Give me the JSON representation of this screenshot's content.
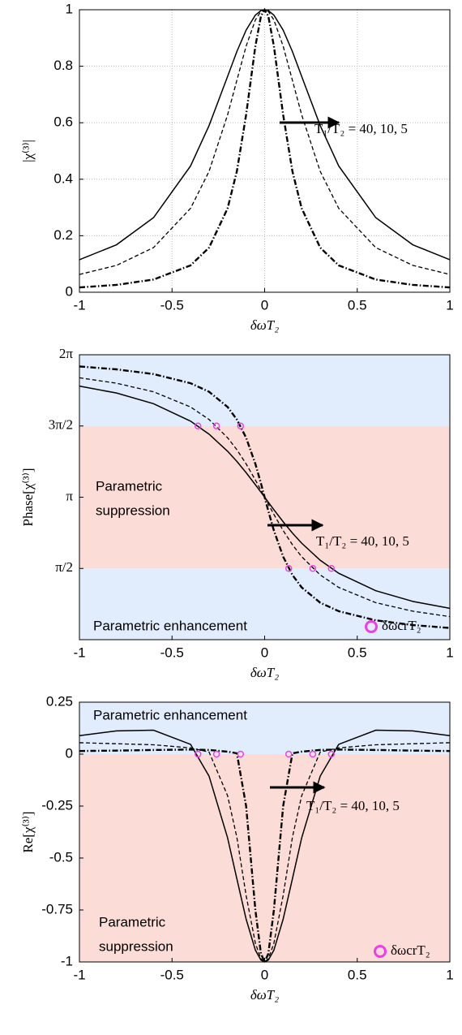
{
  "chart_data": [
    {
      "type": "line",
      "ylabel": "|χ⁽³⁾|",
      "xlabel": "δωT₂",
      "x": [
        -1,
        -0.8,
        -0.6,
        -0.4,
        -0.3,
        -0.2,
        -0.15,
        -0.1,
        -0.05,
        -0.02,
        0,
        0.02,
        0.05,
        0.1,
        0.15,
        0.2,
        0.3,
        0.4,
        0.6,
        0.8,
        1
      ],
      "series": [
        {
          "color": "#000000",
          "dash": "solid",
          "values": [
            0.115,
            0.168,
            0.264,
            0.447,
            0.59,
            0.764,
            0.852,
            0.928,
            0.981,
            0.997,
            1,
            0.997,
            0.981,
            0.928,
            0.852,
            0.764,
            0.59,
            0.447,
            0.264,
            0.168,
            0.115
          ]
        },
        {
          "color": "#000000",
          "dash": "dashed",
          "values": [
            0.063,
            0.095,
            0.158,
            0.297,
            0.428,
            0.628,
            0.75,
            0.871,
            0.964,
            0.994,
            1,
            0.994,
            0.964,
            0.871,
            0.75,
            0.628,
            0.428,
            0.297,
            0.158,
            0.095,
            0.063
          ]
        },
        {
          "color": "#000000",
          "dash": "dashdot",
          "values": [
            0.017,
            0.026,
            0.045,
            0.095,
            0.158,
            0.297,
            0.428,
            0.628,
            0.871,
            0.977,
            1,
            0.977,
            0.871,
            0.628,
            0.428,
            0.297,
            0.158,
            0.095,
            0.045,
            0.026,
            0.017
          ]
        }
      ],
      "xlim": [
        -1,
        1
      ],
      "xticks": [
        -1,
        -0.5,
        0,
        0.5,
        1
      ],
      "ylim": [
        0,
        1
      ],
      "yticks": [
        0,
        0.2,
        0.4,
        0.6,
        0.8,
        1
      ],
      "grid": true,
      "annotations": [
        {
          "text": "T₁/T₂ = 40, 10, 5"
        }
      ]
    },
    {
      "type": "line",
      "ylabel": "Phase[χ⁽³⁾]",
      "xlabel": "δωT₂",
      "x": [
        -1,
        -0.8,
        -0.6,
        -0.4,
        -0.3,
        -0.2,
        -0.15,
        -0.1,
        -0.05,
        -0.02,
        0,
        0.02,
        0.05,
        0.1,
        0.15,
        0.2,
        0.3,
        0.4,
        0.6,
        0.8,
        1
      ],
      "series": [
        {
          "color": "#000000",
          "dash": "solid",
          "values": [
            5.591,
            5.439,
            5.203,
            4.819,
            4.531,
            4.155,
            3.931,
            3.683,
            3.417,
            3.252,
            3.142,
            3.031,
            2.866,
            2.6,
            2.352,
            2.128,
            1.752,
            1.464,
            1.08,
            0.844,
            0.692
          ]
        },
        {
          "color": "#000000",
          "dash": "dashed",
          "values": [
            5.775,
            5.655,
            5.467,
            5.131,
            4.855,
            4.453,
            4.189,
            3.877,
            3.521,
            3.295,
            3.142,
            2.988,
            2.762,
            2.406,
            2.094,
            1.83,
            1.428,
            1.152,
            0.816,
            0.628,
            0.508
          ]
        },
        {
          "color": "#000000",
          "dash": "dashdot",
          "values": [
            6.025,
            5.961,
            5.857,
            5.655,
            5.467,
            5.131,
            4.855,
            4.453,
            3.877,
            3.447,
            3.142,
            2.836,
            2.406,
            1.83,
            1.428,
            1.152,
            0.816,
            0.628,
            0.426,
            0.322,
            0.258
          ]
        }
      ],
      "xlim": [
        -1,
        1
      ],
      "xticks": [
        -1,
        -0.5,
        0,
        0.5,
        1
      ],
      "ylim": [
        0,
        6.2832
      ],
      "yticks": [
        {
          "value": 1.5708,
          "label": "π/2"
        },
        {
          "value": 3.1416,
          "label": "π"
        },
        {
          "value": 4.7124,
          "label": "3π/2"
        },
        {
          "value": 6.2832,
          "label": "2π"
        }
      ],
      "grid": false,
      "bands": [
        {
          "from": 0,
          "to": 1.5708,
          "color": "#e1ecfc"
        },
        {
          "from": 1.5708,
          "to": 4.7124,
          "color": "#fcdcd6"
        },
        {
          "from": 4.7124,
          "to": 6.2832,
          "color": "#e1ecfc"
        }
      ],
      "markers": {
        "name": "δωcrT₂",
        "color": "#ee3fe6",
        "x": [
          -0.36,
          -0.26,
          -0.13,
          0.13,
          0.26,
          0.36
        ],
        "y": [
          4.7124,
          4.7124,
          4.7124,
          1.5708,
          1.5708,
          1.5708
        ]
      },
      "annotations": [
        {
          "text": "T₁/T₂ = 40, 10, 5"
        },
        {
          "lines": [
            "Parametric",
            "suppression"
          ],
          "color": "#e8261e"
        },
        {
          "text": "Parametric enhancement",
          "color": "#1c1ad8"
        }
      ]
    },
    {
      "type": "line",
      "ylabel": "Re[χ⁽³⁾]",
      "xlabel": "δωT₂",
      "x": [
        -1,
        -0.8,
        -0.6,
        -0.4,
        -0.3,
        -0.2,
        -0.15,
        -0.1,
        -0.05,
        -0.02,
        0,
        0.02,
        0.05,
        0.1,
        0.15,
        0.2,
        0.3,
        0.4,
        0.6,
        0.8,
        1
      ],
      "series": [
        {
          "color": "#000000",
          "dash": "solid",
          "values": [
            0.089,
            0.112,
            0.115,
            0.047,
            -0.106,
            -0.403,
            -0.6,
            -0.794,
            -0.943,
            -0.991,
            -1,
            -0.991,
            -0.943,
            -0.794,
            -0.6,
            -0.403,
            -0.106,
            0.047,
            0.115,
            0.112,
            0.089
          ]
        },
        {
          "color": "#000000",
          "dash": "dashed",
          "values": [
            0.055,
            0.05,
            0.045,
            0.03,
            0.01,
            -0.2,
            -0.4,
            -0.68,
            -0.91,
            -0.985,
            -1,
            -0.985,
            -0.91,
            -0.68,
            -0.4,
            -0.2,
            0.01,
            0.03,
            0.045,
            0.05,
            0.055
          ]
        },
        {
          "color": "#000000",
          "dash": "dashdot",
          "values": [
            0.015,
            0.017,
            0.02,
            0.022,
            0.02,
            0.012,
            0.004,
            -0.25,
            -0.75,
            -0.96,
            -1,
            -0.96,
            -0.75,
            -0.25,
            0.004,
            0.012,
            0.02,
            0.022,
            0.02,
            0.017,
            0.015
          ]
        }
      ],
      "xlim": [
        -1,
        1
      ],
      "xticks": [
        -1,
        -0.5,
        0,
        0.5,
        1
      ],
      "ylim": [
        -1,
        0.25
      ],
      "yticks": [
        -1,
        -0.75,
        -0.5,
        -0.25,
        0,
        0.25
      ],
      "grid": false,
      "bands": [
        {
          "from": -1,
          "to": 0,
          "color": "#fcdcd6"
        },
        {
          "from": 0,
          "to": 0.25,
          "color": "#e1ecfc"
        }
      ],
      "markers": {
        "name": "δωcrT₂",
        "color": "#ee3fe6",
        "x": [
          -0.36,
          -0.26,
          -0.13,
          0.13,
          0.26,
          0.36
        ],
        "y": [
          0,
          0,
          0,
          0,
          0,
          0
        ]
      },
      "annotations": [
        {
          "text": "T₁/T₂ = 40, 10, 5"
        },
        {
          "text": "Parametric enhancement",
          "color": "#1c1ad8"
        },
        {
          "lines": [
            "Parametric",
            "suppression"
          ],
          "color": "#e8261e"
        }
      ]
    }
  ]
}
